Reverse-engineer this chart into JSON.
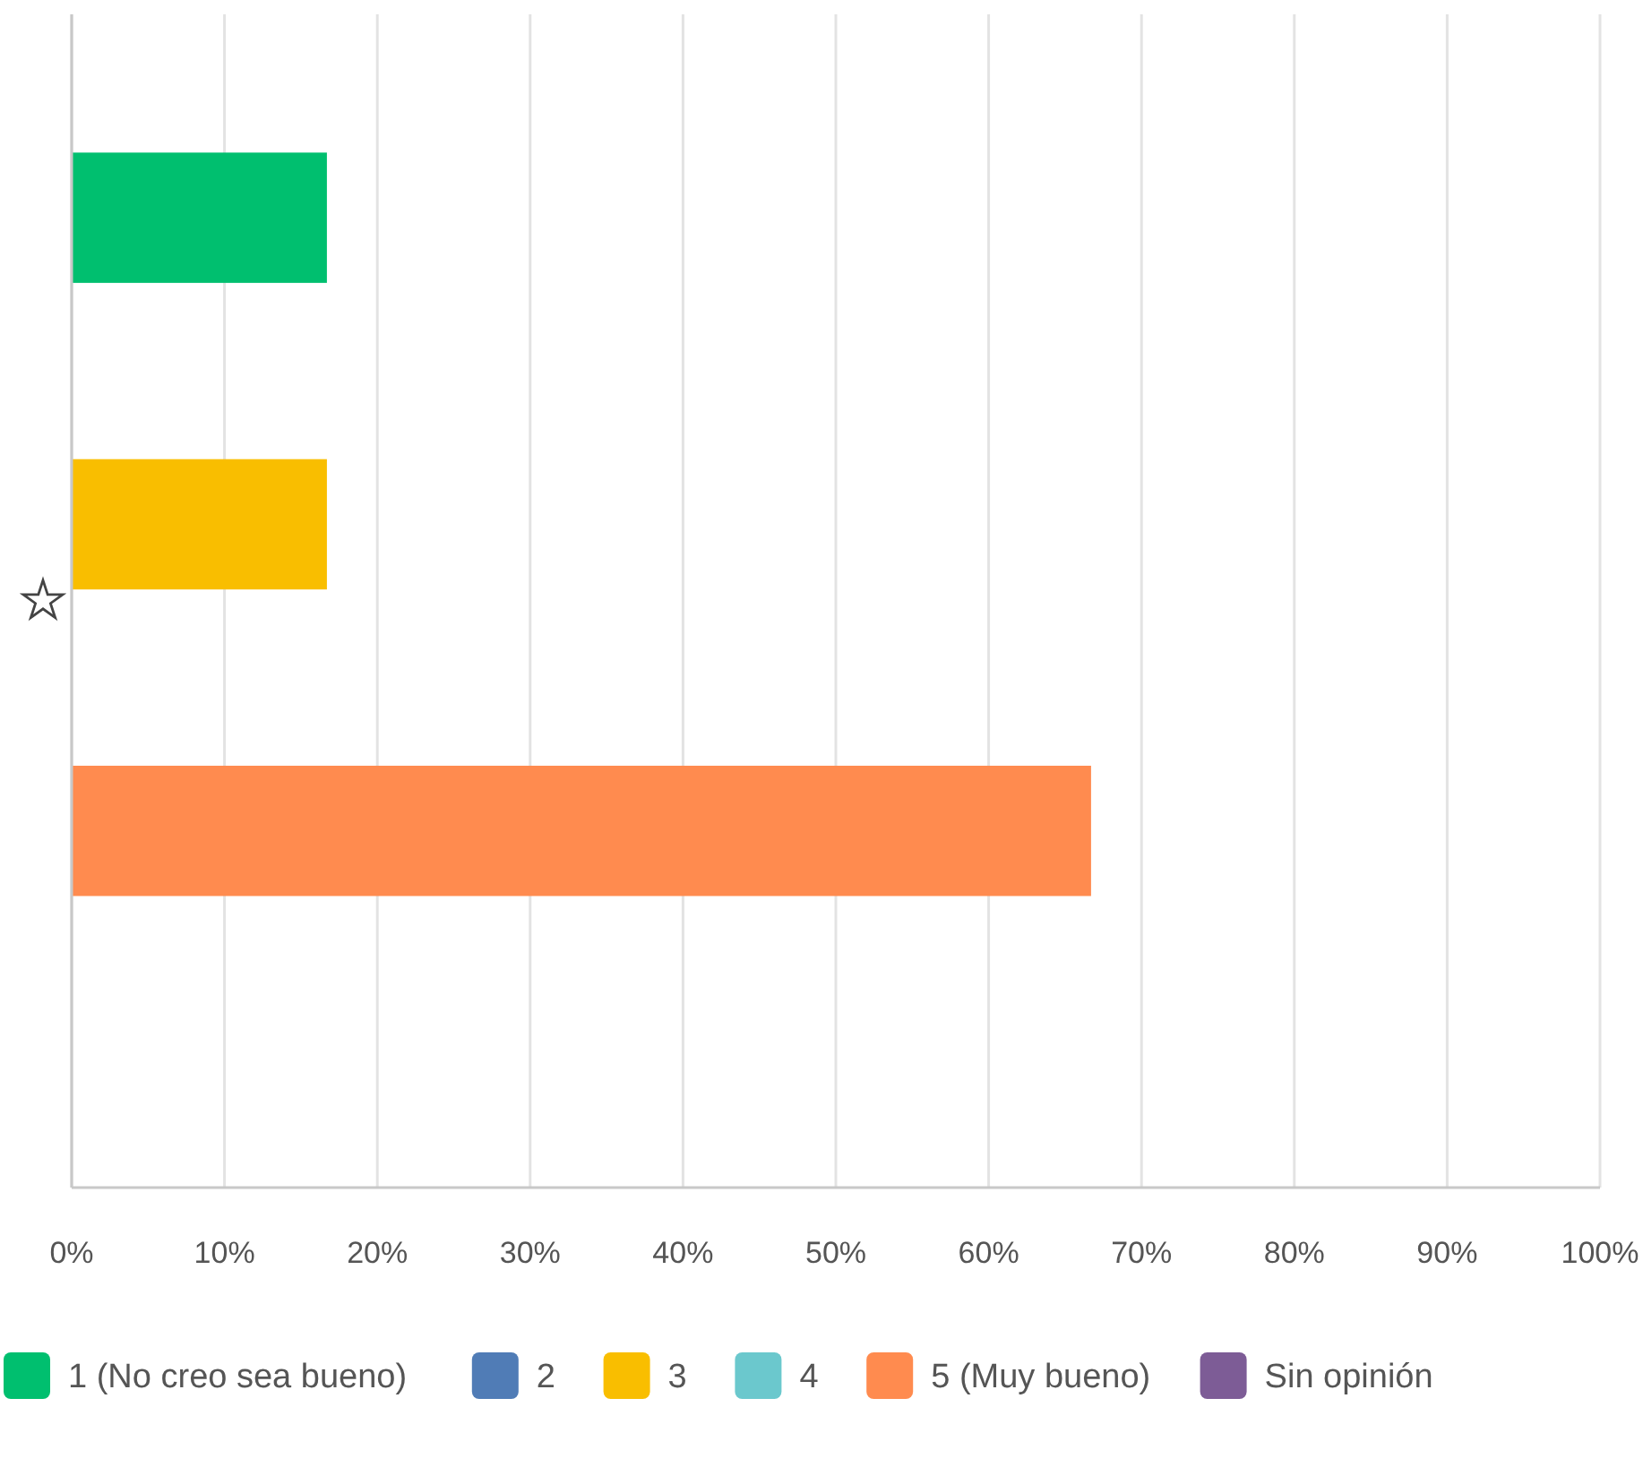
{
  "chart_data": {
    "type": "bar",
    "orientation": "horizontal",
    "categories": [
      null
    ],
    "series": [
      {
        "name": "1 (No creo sea bueno)",
        "color": "#00bf6f",
        "values": [
          16.7
        ]
      },
      {
        "name": "2",
        "color": "#507cb6",
        "values": [
          0
        ]
      },
      {
        "name": "3",
        "color": "#f9be00",
        "values": [
          16.7
        ]
      },
      {
        "name": "4",
        "color": "#6bc8cd",
        "values": [
          0
        ]
      },
      {
        "name": "5 (Muy bueno)",
        "color": "#ff8b4f",
        "values": [
          66.7
        ]
      },
      {
        "name": "Sin opinión",
        "color": "#7d5c96",
        "values": [
          0
        ]
      }
    ],
    "xlim": [
      0,
      100
    ],
    "xticks": [
      {
        "value": 0,
        "label": "0%"
      },
      {
        "value": 10,
        "label": "10%"
      },
      {
        "value": 20,
        "label": "20%"
      },
      {
        "value": 30,
        "label": "30%"
      },
      {
        "value": 40,
        "label": "40%"
      },
      {
        "value": 50,
        "label": "50%"
      },
      {
        "value": 60,
        "label": "60%"
      },
      {
        "value": 70,
        "label": "70%"
      },
      {
        "value": 80,
        "label": "80%"
      },
      {
        "value": 90,
        "label": "90%"
      },
      {
        "value": 100,
        "label": "100%"
      }
    ],
    "grid": "x",
    "legend": "bottom"
  }
}
